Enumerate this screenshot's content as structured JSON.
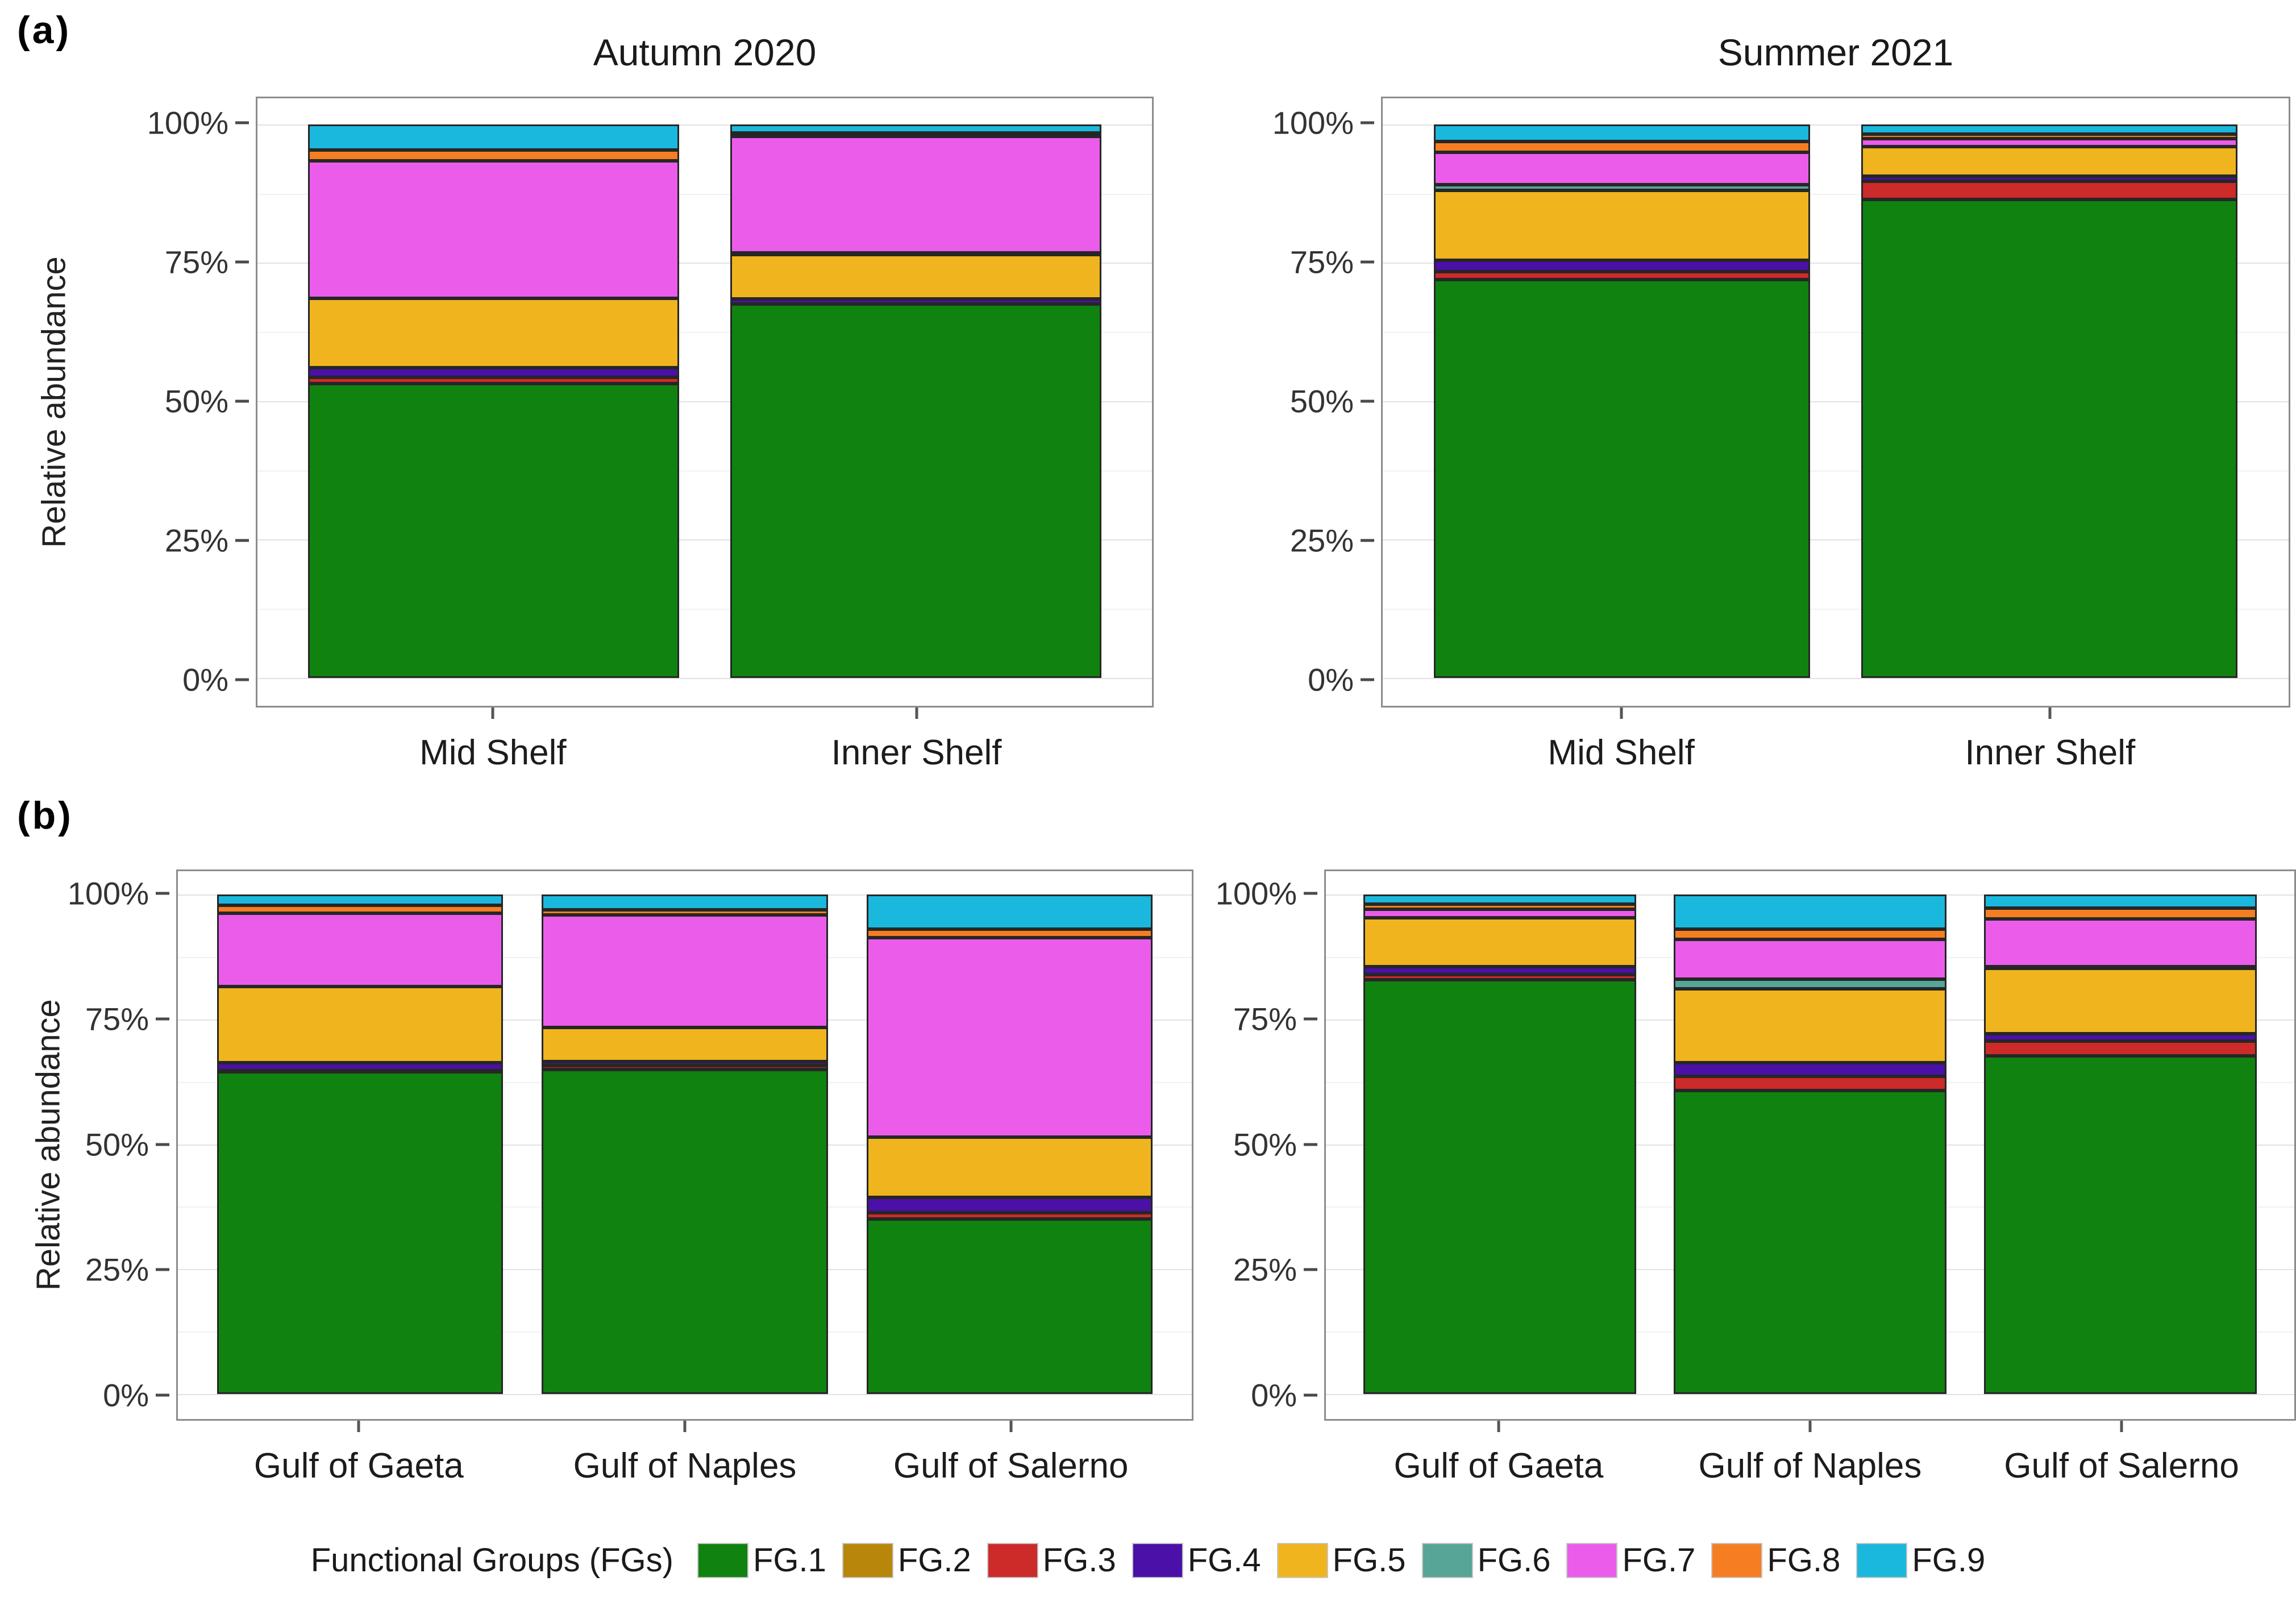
{
  "panel_a_label": "(a)",
  "panel_b_label": "(b)",
  "ylabel": "Relative abundance",
  "legend": {
    "title": "Functional Groups (FGs)",
    "position": "bottom",
    "items": [
      {
        "label": "FG.1",
        "color": "#108210"
      },
      {
        "label": "FG.2",
        "color": "#b8860b"
      },
      {
        "label": "FG.3",
        "color": "#cd2a2a"
      },
      {
        "label": "FG.4",
        "color": "#4a10a8"
      },
      {
        "label": "FG.5",
        "color": "#f0b41e"
      },
      {
        "label": "FG.6",
        "color": "#56a596"
      },
      {
        "label": "FG.7",
        "color": "#eb5ceb"
      },
      {
        "label": "FG.8",
        "color": "#f67e22"
      },
      {
        "label": "FG.9",
        "color": "#1ab8dc"
      }
    ]
  },
  "chart_data": [
    {
      "type": "bar",
      "stacked": true,
      "panel": "a",
      "title": "Autumn 2020",
      "xlabel": "",
      "ylabel": "Relative abundance",
      "ylim": [
        0,
        100
      ],
      "grid": true,
      "yticks": [
        "0%",
        "25%",
        "50%",
        "75%",
        "100%"
      ],
      "categories": [
        "Mid Shelf",
        "Inner Shelf"
      ],
      "series": [
        {
          "name": "FG.1",
          "values": [
            53.2,
            67.5
          ]
        },
        {
          "name": "FG.2",
          "values": [
            0,
            0
          ]
        },
        {
          "name": "FG.3",
          "values": [
            1.1,
            0
          ]
        },
        {
          "name": "FG.4",
          "values": [
            1.7,
            1.0
          ]
        },
        {
          "name": "FG.5",
          "values": [
            12.6,
            8.0
          ]
        },
        {
          "name": "FG.6",
          "values": [
            0,
            0.3
          ]
        },
        {
          "name": "FG.7",
          "values": [
            24.8,
            21.0
          ]
        },
        {
          "name": "FG.8",
          "values": [
            2.0,
            0.7
          ]
        },
        {
          "name": "FG.9",
          "values": [
            4.6,
            1.5
          ]
        }
      ]
    },
    {
      "type": "bar",
      "stacked": true,
      "panel": "a",
      "title": "Summer 2021",
      "xlabel": "",
      "ylabel": "Relative abundance",
      "ylim": [
        0,
        100
      ],
      "grid": true,
      "yticks": [
        "0%",
        "25%",
        "50%",
        "75%",
        "100%"
      ],
      "categories": [
        "Mid Shelf",
        "Inner Shelf"
      ],
      "series": [
        {
          "name": "FG.1",
          "values": [
            72.0,
            86.4
          ]
        },
        {
          "name": "FG.2",
          "values": [
            0,
            0
          ]
        },
        {
          "name": "FG.3",
          "values": [
            1.4,
            3.3
          ]
        },
        {
          "name": "FG.4",
          "values": [
            2.1,
            1.0
          ]
        },
        {
          "name": "FG.5",
          "values": [
            12.6,
            5.3
          ]
        },
        {
          "name": "FG.6",
          "values": [
            1.0,
            0
          ]
        },
        {
          "name": "FG.7",
          "values": [
            5.9,
            1.4
          ]
        },
        {
          "name": "FG.8",
          "values": [
            1.9,
            0.9
          ]
        },
        {
          "name": "FG.9",
          "values": [
            3.1,
            1.7
          ]
        }
      ]
    },
    {
      "type": "bar",
      "stacked": true,
      "panel": "b",
      "title": "",
      "xlabel": "",
      "ylabel": "Relative abundance",
      "ylim": [
        0,
        100
      ],
      "grid": true,
      "yticks": [
        "0%",
        "25%",
        "50%",
        "75%",
        "100%"
      ],
      "categories": [
        "Gulf of Gaeta",
        "Gulf of Naples",
        "Gulf of Salerno"
      ],
      "series": [
        {
          "name": "FG.1",
          "values": [
            64.5,
            65.0,
            35.0
          ]
        },
        {
          "name": "FG.2",
          "values": [
            0,
            0,
            0
          ]
        },
        {
          "name": "FG.3",
          "values": [
            0.3,
            0.8,
            1.3
          ]
        },
        {
          "name": "FG.4",
          "values": [
            1.6,
            0.8,
            3.1
          ]
        },
        {
          "name": "FG.5",
          "values": [
            15.2,
            6.8,
            12.0
          ]
        },
        {
          "name": "FG.6",
          "values": [
            0,
            0,
            0
          ]
        },
        {
          "name": "FG.7",
          "values": [
            14.7,
            22.5,
            40.0
          ]
        },
        {
          "name": "FG.8",
          "values": [
            1.6,
            1.1,
            1.7
          ]
        },
        {
          "name": "FG.9",
          "values": [
            2.1,
            3.0,
            6.9
          ]
        }
      ]
    },
    {
      "type": "bar",
      "stacked": true,
      "panel": "b",
      "title": "",
      "xlabel": "",
      "ylabel": "Relative abundance",
      "ylim": [
        0,
        100
      ],
      "grid": true,
      "yticks": [
        "0%",
        "25%",
        "50%",
        "75%",
        "100%"
      ],
      "categories": [
        "Gulf of Gaeta",
        "Gulf of Naples",
        "Gulf of Salerno"
      ],
      "series": [
        {
          "name": "FG.1",
          "values": [
            83.0,
            60.8,
            67.7
          ]
        },
        {
          "name": "FG.2",
          "values": [
            0,
            0,
            0
          ]
        },
        {
          "name": "FG.3",
          "values": [
            1.0,
            2.8,
            3.0
          ]
        },
        {
          "name": "FG.4",
          "values": [
            1.6,
            2.8,
            1.4
          ]
        },
        {
          "name": "FG.5",
          "values": [
            9.8,
            14.8,
            13.2
          ]
        },
        {
          "name": "FG.6",
          "values": [
            0,
            1.9,
            0.3
          ]
        },
        {
          "name": "FG.7",
          "values": [
            1.7,
            8.0,
            9.6
          ]
        },
        {
          "name": "FG.8",
          "values": [
            1.0,
            2.0,
            2.1
          ]
        },
        {
          "name": "FG.9",
          "values": [
            1.9,
            6.9,
            2.7
          ]
        }
      ]
    }
  ]
}
